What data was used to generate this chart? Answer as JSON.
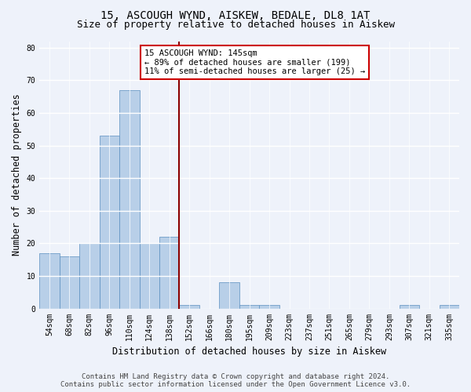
{
  "title_line1": "15, ASCOUGH WYND, AISKEW, BEDALE, DL8 1AT",
  "title_line2": "Size of property relative to detached houses in Aiskew",
  "xlabel": "Distribution of detached houses by size in Aiskew",
  "ylabel": "Number of detached properties",
  "categories": [
    "54sqm",
    "68sqm",
    "82sqm",
    "96sqm",
    "110sqm",
    "124sqm",
    "138sqm",
    "152sqm",
    "166sqm",
    "180sqm",
    "195sqm",
    "209sqm",
    "223sqm",
    "237sqm",
    "251sqm",
    "265sqm",
    "279sqm",
    "293sqm",
    "307sqm",
    "321sqm",
    "335sqm"
  ],
  "values": [
    17,
    16,
    20,
    53,
    67,
    20,
    22,
    1,
    0,
    8,
    1,
    1,
    0,
    0,
    0,
    0,
    0,
    0,
    1,
    0,
    1
  ],
  "bar_color": "#b8cfe8",
  "bar_edgecolor": "#5a8fc0",
  "vline_color": "#8b0000",
  "annotation_title": "15 ASCOUGH WYND: 145sqm",
  "annotation_line2": "← 89% of detached houses are smaller (199)",
  "annotation_line3": "11% of semi-detached houses are larger (25) →",
  "annotation_box_color": "#ffffff",
  "annotation_edgecolor": "#cc0000",
  "ylim": [
    0,
    82
  ],
  "yticks": [
    0,
    10,
    20,
    30,
    40,
    50,
    60,
    70,
    80
  ],
  "footer_line1": "Contains HM Land Registry data © Crown copyright and database right 2024.",
  "footer_line2": "Contains public sector information licensed under the Open Government Licence v3.0.",
  "bg_color": "#eef2fa",
  "plot_bg_color": "#eef2fa",
  "title_fontsize": 10,
  "subtitle_fontsize": 9,
  "tick_fontsize": 7,
  "axis_label_fontsize": 8.5,
  "footer_fontsize": 6.5
}
